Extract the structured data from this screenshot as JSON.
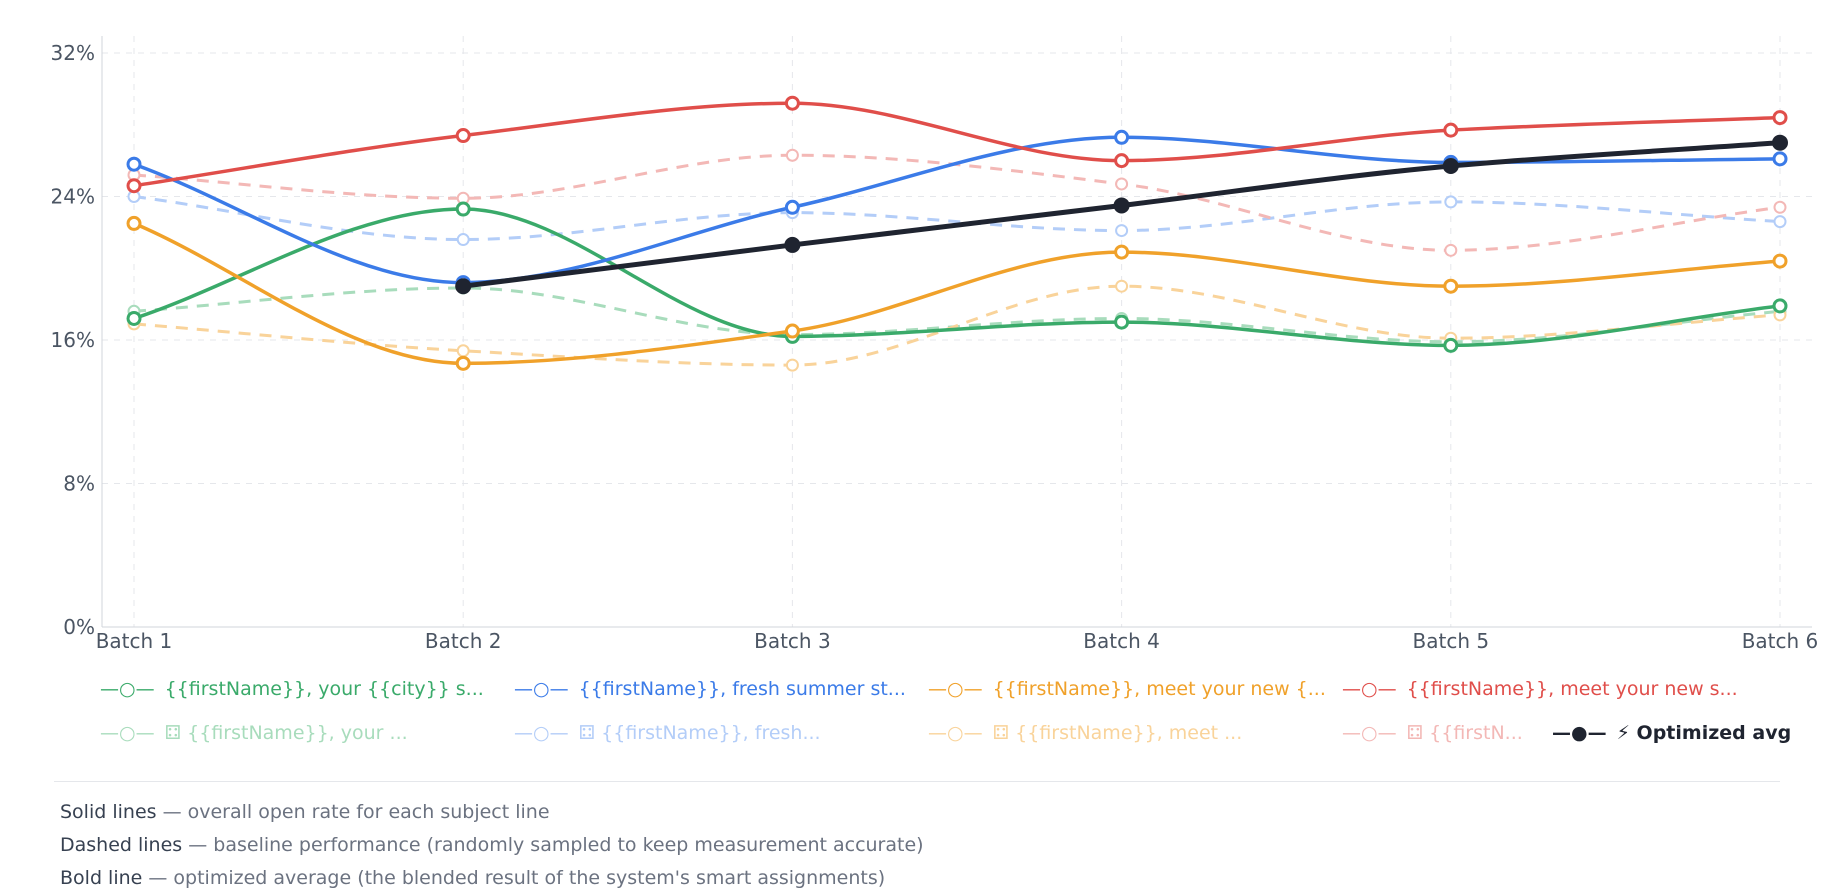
{
  "chart_data": {
    "type": "line",
    "categories": [
      "Batch 1",
      "Batch 2",
      "Batch 3",
      "Batch 4",
      "Batch 5",
      "Batch 6"
    ],
    "ylim": [
      0,
      32
    ],
    "yticks": [
      "0%",
      "8%",
      "16%",
      "24%",
      "32%"
    ],
    "ytick_values": [
      0,
      8,
      16,
      24,
      32
    ],
    "grid": true,
    "legend_position": "bottom",
    "series": [
      {
        "name": "{{firstName}}, your {{city}} s...",
        "legend_label": "{{firstName}}, your {{city}} s...",
        "style": "solid",
        "color": "#3aaa6a",
        "values": [
          17.2,
          23.3,
          16.2,
          17.0,
          15.7,
          17.9
        ]
      },
      {
        "name": "{{firstName}}, fresh summer st...",
        "legend_label": "{{firstName}}, fresh summer st...",
        "style": "solid",
        "color": "#3b7be8",
        "values": [
          25.8,
          19.2,
          23.4,
          27.3,
          25.9,
          26.1
        ]
      },
      {
        "name": "{{firstName}}, meet your new {...",
        "legend_label": "{{firstName}}, meet your new {...",
        "style": "solid",
        "color": "#f0a12a",
        "values": [
          22.5,
          14.7,
          16.5,
          20.9,
          19.0,
          20.4
        ]
      },
      {
        "name": "{{firstName}}, meet your new s...",
        "legend_label": "{{firstName}}, meet your new s...",
        "style": "solid",
        "color": "#e04e4a",
        "values": [
          24.6,
          27.4,
          29.2,
          26.0,
          27.7,
          28.4
        ]
      },
      {
        "name": "⚃ {{firstName}}, your ...",
        "legend_label": "⚃ {{firstName}}, your ...",
        "style": "dashed",
        "color": "#a8dcbc",
        "values": [
          17.6,
          18.9,
          16.3,
          17.2,
          15.9,
          17.6
        ]
      },
      {
        "name": "⚃ {{firstName}}, fresh...",
        "legend_label": "⚃ {{firstName}}, fresh...",
        "style": "dashed",
        "color": "#b3cdf8",
        "values": [
          24.0,
          21.6,
          23.1,
          22.1,
          23.7,
          22.6
        ]
      },
      {
        "name": "⚃ {{firstName}}, meet ...",
        "legend_label": "⚃ {{firstName}}, meet ...",
        "style": "dashed",
        "color": "#f9d39a",
        "values": [
          16.9,
          15.4,
          14.6,
          19.0,
          16.1,
          17.4
        ]
      },
      {
        "name": "⚃ {{firstN...",
        "legend_label": "⚃ {{firstN...",
        "style": "dashed",
        "color": "#f3b8b6",
        "values": [
          25.2,
          23.9,
          26.3,
          24.7,
          21.0,
          23.4
        ]
      },
      {
        "name": "⚡ Optimized avg",
        "legend_label": "⚡ Optimized avg",
        "style": "bold",
        "color": "#1f2430",
        "values": [
          null,
          19.0,
          21.3,
          23.5,
          25.7,
          27.0
        ]
      }
    ]
  },
  "legend_symbols": {
    "hollow": "—○—",
    "filled": "—●—"
  },
  "notes": [
    {
      "term": "Solid lines",
      "desc": " — overall open rate for each subject line"
    },
    {
      "term": "Dashed lines",
      "desc": " — baseline performance (randomly sampled to keep measurement accurate)"
    },
    {
      "term": "Bold line",
      "desc": " — optimized average (the blended result of the system's smart assignments)"
    }
  ],
  "colors": {
    "grid": "#e5e7eb",
    "axis": "#d1d5db",
    "tick_text": "#4b5563",
    "note_text": "#6b7280",
    "note_term": "#374151"
  }
}
